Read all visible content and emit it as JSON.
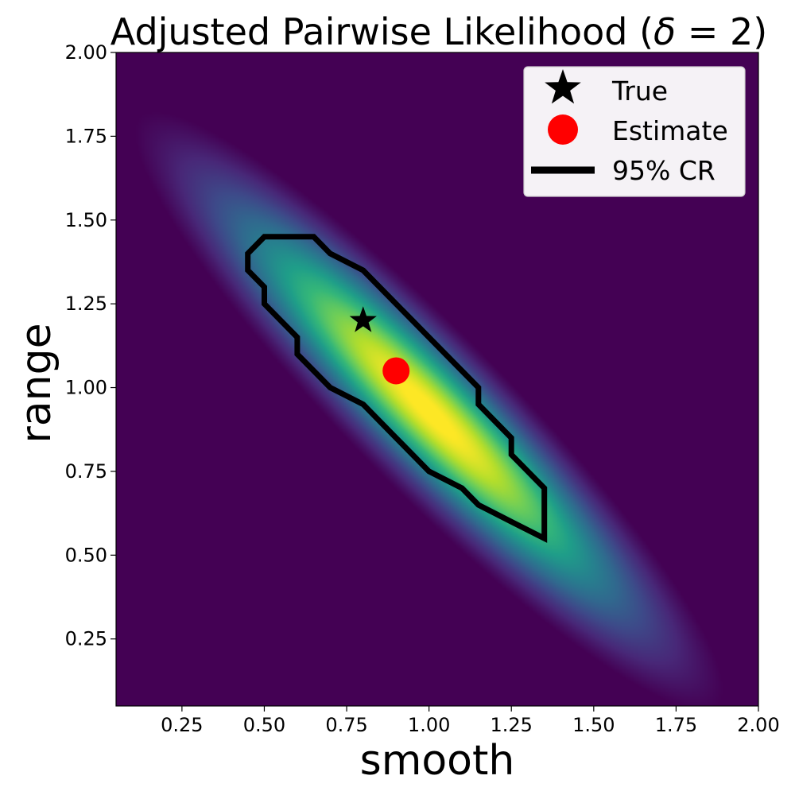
{
  "chart_data": {
    "type": "heatmap",
    "title": "Adjusted Pairwise Likelihood (δ = 2)",
    "title_parts": {
      "prefix": "Adjusted Pairwise Likelihood (",
      "symbol": "δ",
      "suffix": " = 2)"
    },
    "xlabel": "smooth",
    "ylabel": "range",
    "xlim": [
      0.05,
      2.0
    ],
    "ylim": [
      0.05,
      2.0
    ],
    "x_ticks": [
      0.25,
      0.5,
      0.75,
      1.0,
      1.25,
      1.5,
      1.75,
      2.0
    ],
    "x_tick_labels": [
      "0.25",
      "0.50",
      "0.75",
      "1.00",
      "1.25",
      "1.50",
      "1.75",
      "2.00"
    ],
    "y_ticks": [
      0.25,
      0.5,
      0.75,
      1.0,
      1.25,
      1.5,
      1.75,
      2.0
    ],
    "y_tick_labels": [
      "0.25",
      "0.50",
      "0.75",
      "1.00",
      "1.25",
      "1.50",
      "1.75",
      "2.00"
    ],
    "grid": false,
    "colormap": "viridis",
    "background_color": "#440154",
    "legend": {
      "placement": "top-right",
      "entries": [
        {
          "label": "True",
          "marker": "star",
          "color": "#000000"
        },
        {
          "label": "Estimate",
          "marker": "circle",
          "color": "#ff0000"
        },
        {
          "label": "95% CR",
          "marker": "line",
          "color": "#000000"
        }
      ]
    },
    "true_point": {
      "x": 0.8,
      "y": 1.2
    },
    "estimate_point": {
      "x": 0.9,
      "y": 1.05
    },
    "credible_region_95": [
      [
        0.5,
        1.45
      ],
      [
        0.65,
        1.45
      ],
      [
        0.7,
        1.4
      ],
      [
        0.8,
        1.35
      ],
      [
        0.9,
        1.25
      ],
      [
        1.0,
        1.15
      ],
      [
        1.1,
        1.05
      ],
      [
        1.15,
        1.0
      ],
      [
        1.15,
        0.95
      ],
      [
        1.25,
        0.85
      ],
      [
        1.25,
        0.8
      ],
      [
        1.35,
        0.7
      ],
      [
        1.35,
        0.55
      ],
      [
        1.25,
        0.6
      ],
      [
        1.15,
        0.65
      ],
      [
        1.1,
        0.7
      ],
      [
        1.0,
        0.75
      ],
      [
        0.9,
        0.85
      ],
      [
        0.8,
        0.95
      ],
      [
        0.7,
        1.0
      ],
      [
        0.6,
        1.1
      ],
      [
        0.6,
        1.15
      ],
      [
        0.5,
        1.25
      ],
      [
        0.5,
        1.3
      ],
      [
        0.45,
        1.35
      ],
      [
        0.45,
        1.4
      ],
      [
        0.5,
        1.45
      ]
    ]
  }
}
